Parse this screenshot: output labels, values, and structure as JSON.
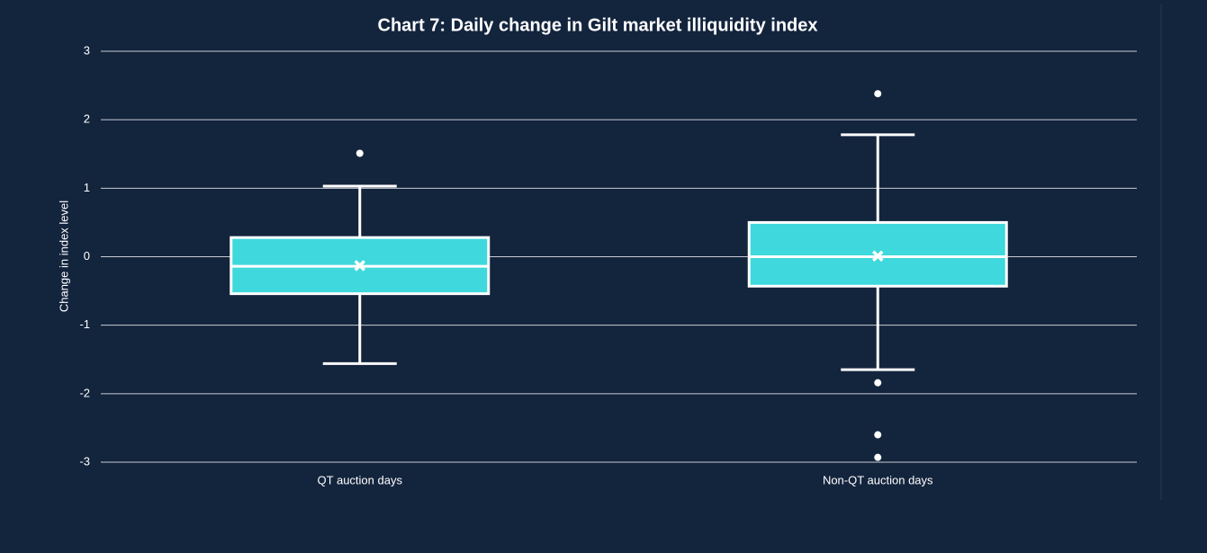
{
  "chart_data": {
    "type": "box",
    "title": "Chart 7: Daily change in Gilt market illiquidity index",
    "y_label": "Change in index level",
    "categories": [
      "QT auction days",
      "Non-QT auction days"
    ],
    "color": "#3fd8dc",
    "boxes": [
      {
        "whisker_low": -1.56,
        "q1": -0.54,
        "median": -0.14,
        "q3": 0.28,
        "whisker_high": 1.03,
        "mean": -0.13,
        "outliers": [
          1.51
        ]
      },
      {
        "whisker_low": -1.65,
        "q1": -0.43,
        "median": 0.0,
        "q3": 0.5,
        "whisker_high": 1.78,
        "mean": 0.01,
        "outliers": [
          2.38,
          -1.84,
          -2.6,
          -2.93
        ]
      }
    ],
    "ylim": [
      -3,
      3
    ],
    "yticks": [
      -3,
      -2,
      -1,
      0,
      1,
      2,
      3
    ],
    "grid": true
  }
}
